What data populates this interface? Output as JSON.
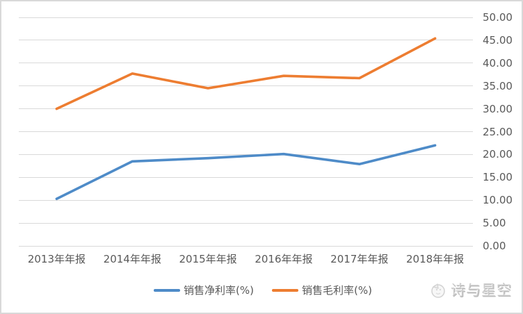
{
  "chart_data": {
    "type": "line",
    "categories": [
      "2013年年报",
      "2014年年报",
      "2015年年报",
      "2016年年报",
      "2017年年报",
      "2018年年报"
    ],
    "series": [
      {
        "name": "销售净利率(%)",
        "color": "#4E8BC8",
        "values": [
          10.3,
          18.5,
          19.2,
          20.1,
          17.9,
          22.0
        ]
      },
      {
        "name": "销售毛利率(%)",
        "color": "#ED7D31",
        "values": [
          30.0,
          37.7,
          34.5,
          37.2,
          36.7,
          45.4
        ]
      }
    ],
    "title": "",
    "xlabel": "",
    "ylabel": "",
    "ylim": [
      0,
      50
    ],
    "ytick_step": 5,
    "ytick_labels": [
      "0.00",
      "5.00",
      "10.00",
      "15.00",
      "20.00",
      "25.00",
      "30.00",
      "35.00",
      "40.00",
      "45.00",
      "50.00"
    ],
    "yaxis_side": "right",
    "grid": "horizontal",
    "legend_position": "bottom",
    "gridline_color": "#D9D9D9",
    "axis_text_color": "#595959"
  },
  "watermark": {
    "text": "诗与星空",
    "icon": "bird-logo-icon",
    "color": "#CBCBCB"
  }
}
